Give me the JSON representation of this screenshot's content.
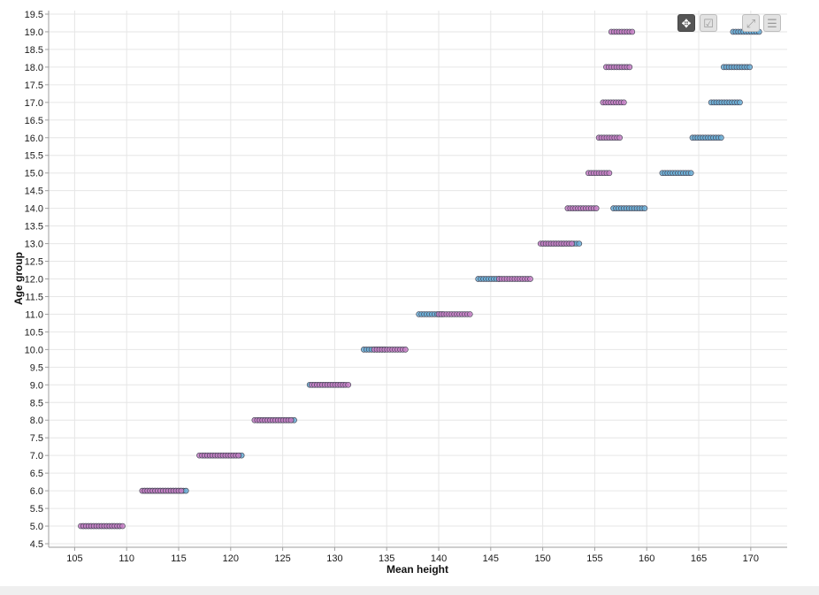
{
  "chart_data": {
    "type": "scatter",
    "title": "",
    "xlabel": "Mean height",
    "ylabel": "Age group",
    "xlim": [
      102.5,
      173.5
    ],
    "ylim": [
      4.4,
      19.6
    ],
    "xticks": [
      105,
      110,
      115,
      120,
      125,
      130,
      135,
      140,
      145,
      150,
      155,
      160,
      165,
      170
    ],
    "yticks": [
      4.5,
      5.0,
      5.5,
      6.0,
      6.5,
      7.0,
      7.5,
      8.0,
      8.5,
      9.0,
      9.5,
      10.0,
      10.5,
      11.0,
      11.5,
      12.0,
      12.5,
      13.0,
      13.5,
      14.0,
      14.5,
      15.0,
      15.5,
      16.0,
      16.5,
      17.0,
      17.5,
      18.0,
      18.5,
      19.0,
      19.5
    ],
    "grid": true,
    "legend": "none",
    "colors": {
      "boys": "#6aaed6",
      "girls": "#c77fc6",
      "marker_edge": "#4a4a5a"
    },
    "series": [
      {
        "color_key": "boys",
        "ranges": [
          {
            "y": 5.0,
            "x_min": 105.8,
            "x_max": 109.5
          },
          {
            "y": 6.0,
            "x_min": 111.7,
            "x_max": 115.7
          },
          {
            "y": 7.0,
            "x_min": 117.3,
            "x_max": 121.2
          },
          {
            "y": 8.0,
            "x_min": 122.6,
            "x_max": 126.2
          },
          {
            "y": 9.0,
            "x_min": 127.6,
            "x_max": 131.0
          },
          {
            "y": 10.0,
            "x_min": 132.8,
            "x_max": 135.0
          },
          {
            "y": 11.0,
            "x_min": 138.1,
            "x_max": 140.5
          },
          {
            "y": 12.0,
            "x_min": 143.8,
            "x_max": 146.0
          },
          {
            "y": 13.0,
            "x_min": 150.0,
            "x_max": 153.5
          },
          {
            "y": 14.0,
            "x_min": 156.8,
            "x_max": 159.9
          },
          {
            "y": 15.0,
            "x_min": 161.5,
            "x_max": 164.4
          },
          {
            "y": 16.0,
            "x_min": 164.4,
            "x_max": 167.2
          },
          {
            "y": 17.0,
            "x_min": 166.2,
            "x_max": 169.0
          },
          {
            "y": 18.0,
            "x_min": 167.4,
            "x_max": 170.1
          },
          {
            "y": 19.0,
            "x_min": 168.3,
            "x_max": 170.8
          }
        ]
      },
      {
        "color_key": "girls",
        "ranges": [
          {
            "y": 5.0,
            "x_min": 105.6,
            "x_max": 109.8
          },
          {
            "y": 6.0,
            "x_min": 111.5,
            "x_max": 115.3
          },
          {
            "y": 7.0,
            "x_min": 117.0,
            "x_max": 120.8
          },
          {
            "y": 8.0,
            "x_min": 122.3,
            "x_max": 125.8
          },
          {
            "y": 9.0,
            "x_min": 127.8,
            "x_max": 131.4
          },
          {
            "y": 10.0,
            "x_min": 133.8,
            "x_max": 137.0
          },
          {
            "y": 11.0,
            "x_min": 140.0,
            "x_max": 143.2
          },
          {
            "y": 12.0,
            "x_min": 145.8,
            "x_max": 148.8
          },
          {
            "y": 13.0,
            "x_min": 149.8,
            "x_max": 152.8
          },
          {
            "y": 14.0,
            "x_min": 152.4,
            "x_max": 155.2
          },
          {
            "y": 15.0,
            "x_min": 154.4,
            "x_max": 156.6
          },
          {
            "y": 16.0,
            "x_min": 155.4,
            "x_max": 157.6
          },
          {
            "y": 17.0,
            "x_min": 155.8,
            "x_max": 158.0
          },
          {
            "y": 18.0,
            "x_min": 156.1,
            "x_max": 158.4
          },
          {
            "y": 19.0,
            "x_min": 156.6,
            "x_max": 158.6
          }
        ]
      }
    ]
  },
  "toolbar": {
    "buttons": [
      {
        "icon": "move-icon",
        "glyph": "✥",
        "active": true
      },
      {
        "icon": "checkbox-select-icon",
        "glyph": "☑",
        "active": false
      },
      {
        "icon": "fullscreen-icon",
        "glyph": "⤢",
        "active": false
      },
      {
        "icon": "menu-icon",
        "glyph": "☰",
        "active": false
      }
    ]
  }
}
